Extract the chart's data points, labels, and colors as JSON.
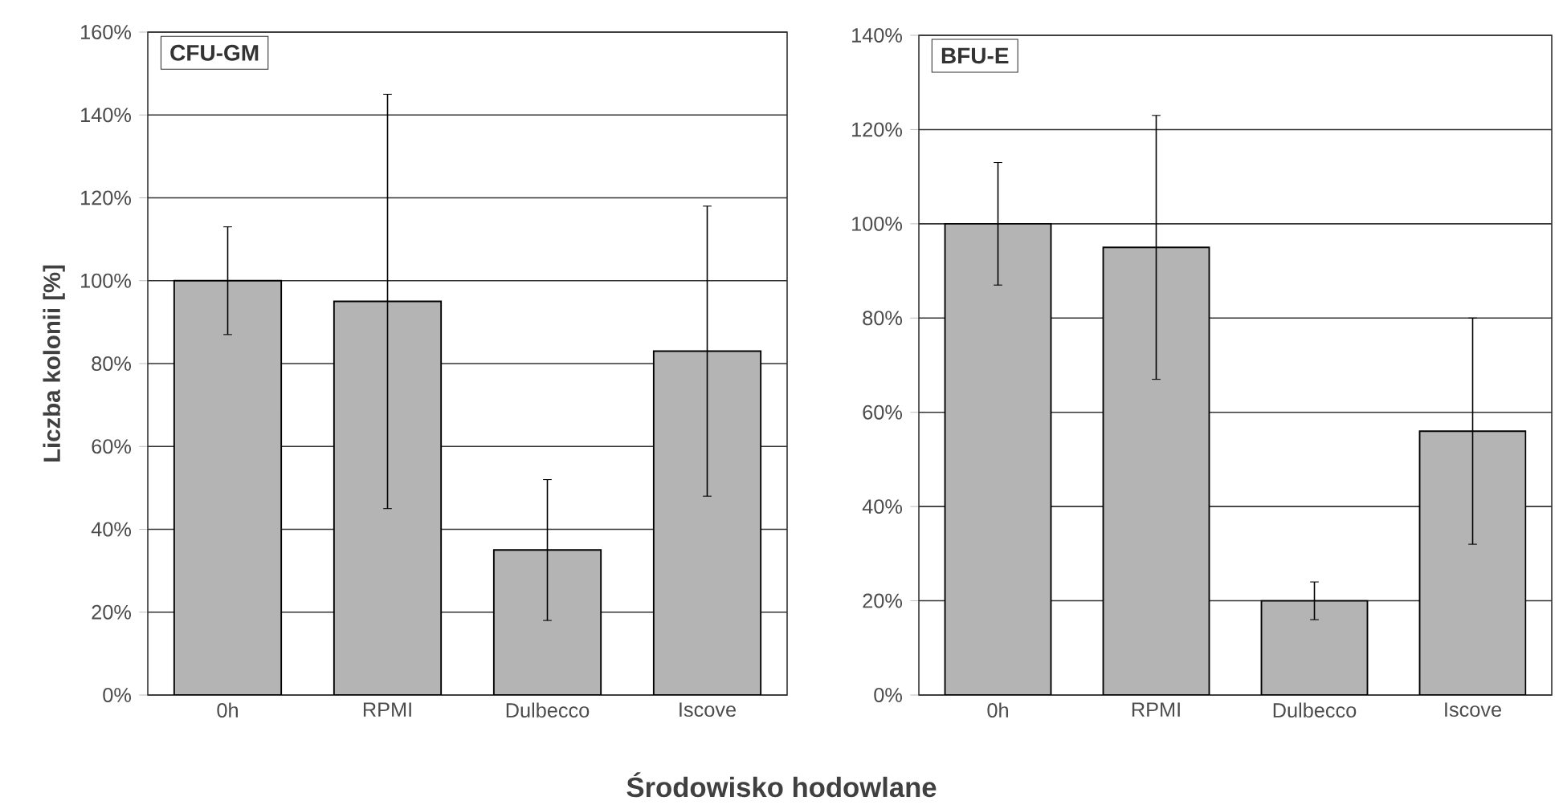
{
  "chart_data": [
    {
      "type": "bar",
      "title": "CFU-GM",
      "ylabel": "Liczba kolonii [%]",
      "xlabel": "Środowisko hodowlane",
      "categories": [
        "0h",
        "RPMI",
        "Dulbecco",
        "Iscove"
      ],
      "values": [
        100,
        95,
        35,
        83
      ],
      "errors": [
        13,
        50,
        17,
        35
      ],
      "color": "#b4b4b4",
      "ylim": [
        0,
        160
      ],
      "yticks": [
        {
          "value": 0,
          "label": "0%"
        },
        {
          "value": 20,
          "label": "20%"
        },
        {
          "value": 40,
          "label": "40%"
        },
        {
          "value": 60,
          "label": "60%"
        },
        {
          "value": 80,
          "label": "80%"
        },
        {
          "value": 100,
          "label": "100%"
        },
        {
          "value": 120,
          "label": "120%"
        },
        {
          "value": 140,
          "label": "140%"
        },
        {
          "value": 160,
          "label": "160%"
        }
      ],
      "grid": "y"
    },
    {
      "type": "bar",
      "title": "BFU-E",
      "categories": [
        "0h",
        "RPMI",
        "Dulbecco",
        "Iscove"
      ],
      "values": [
        100,
        95,
        20,
        56
      ],
      "errors": [
        13,
        28,
        4,
        24
      ],
      "color": "#b4b4b4",
      "ylim": [
        0,
        140
      ],
      "yticks": [
        {
          "value": 0,
          "label": "0%"
        },
        {
          "value": 20,
          "label": "20%"
        },
        {
          "value": 40,
          "label": "40%"
        },
        {
          "value": 60,
          "label": "60%"
        },
        {
          "value": 80,
          "label": "80%"
        },
        {
          "value": 100,
          "label": "100%"
        },
        {
          "value": 120,
          "label": "120%"
        },
        {
          "value": 140,
          "label": "140%"
        }
      ],
      "grid": "y"
    }
  ]
}
